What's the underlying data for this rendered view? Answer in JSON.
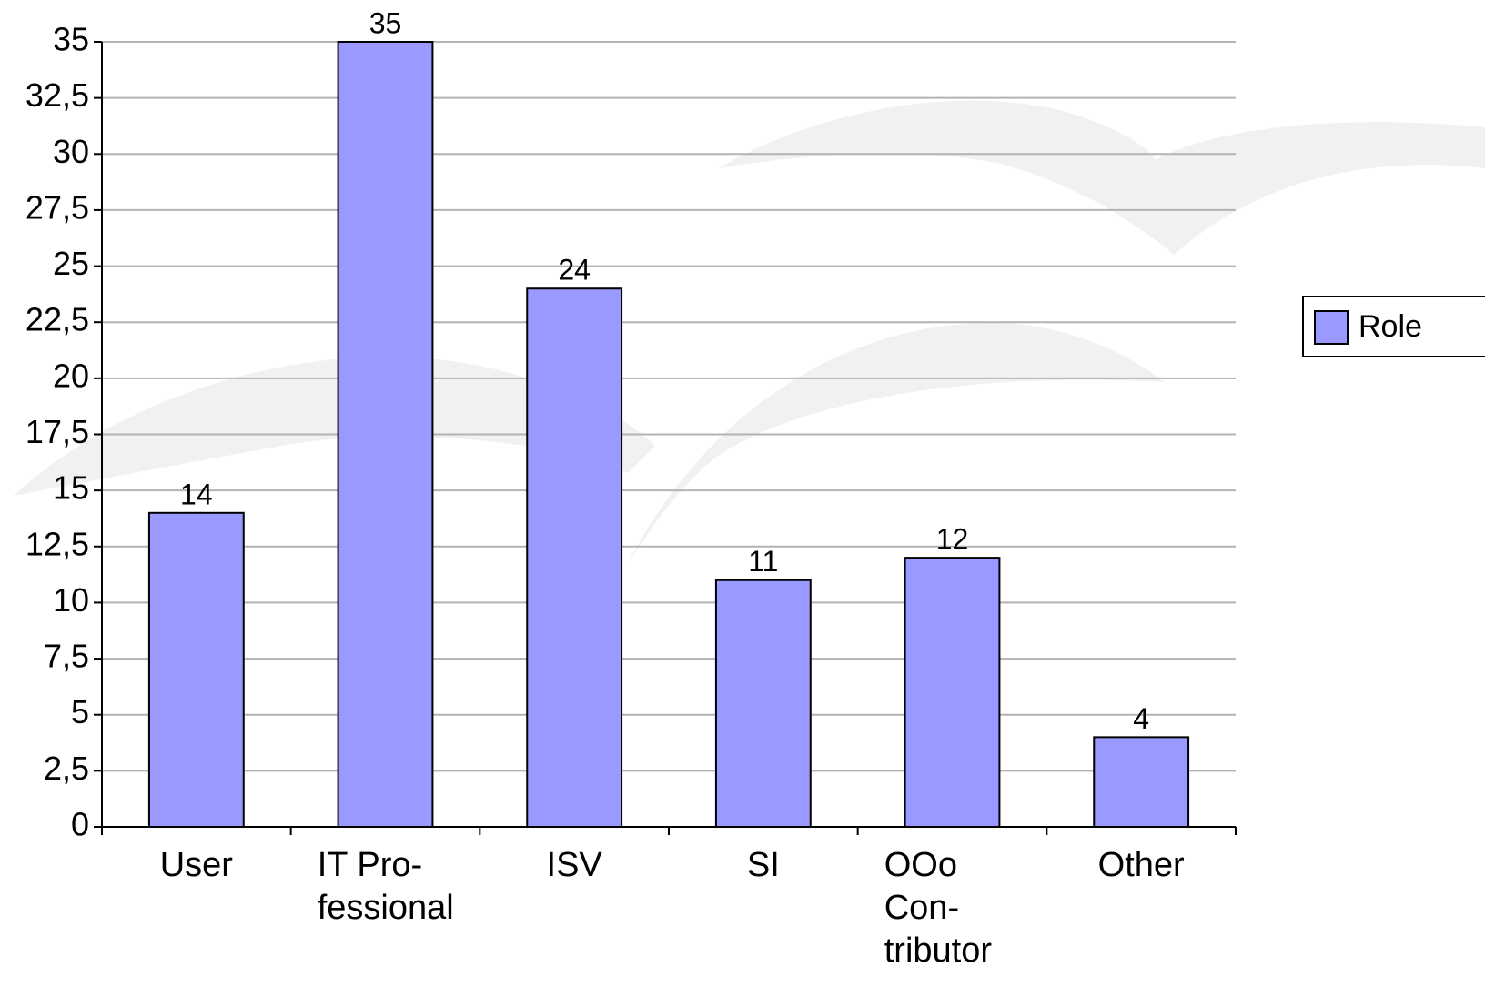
{
  "chart_data": {
    "type": "bar",
    "categories": [
      "User",
      "IT Pro-\nfessional",
      "ISV",
      "SI",
      "OOo\nCon-\ntributor",
      "Other"
    ],
    "series": [
      {
        "name": "Role",
        "color": "#9999ff",
        "values": [
          14,
          35,
          24,
          11,
          12,
          4
        ]
      }
    ],
    "ylim": [
      0,
      35
    ],
    "yticks": [
      0,
      {
        "value": 2.5,
        "label": "2,5"
      },
      5,
      {
        "value": 7.5,
        "label": "7,5"
      },
      10,
      {
        "value": 12.5,
        "label": "12,5"
      },
      15,
      {
        "value": 17.5,
        "label": "17,5"
      },
      20,
      {
        "value": 22.5,
        "label": "22,5"
      },
      25,
      {
        "value": 27.5,
        "label": "27,5"
      },
      30,
      {
        "value": 32.5,
        "label": "32,5"
      },
      35
    ],
    "grid": true,
    "legend": "right"
  }
}
